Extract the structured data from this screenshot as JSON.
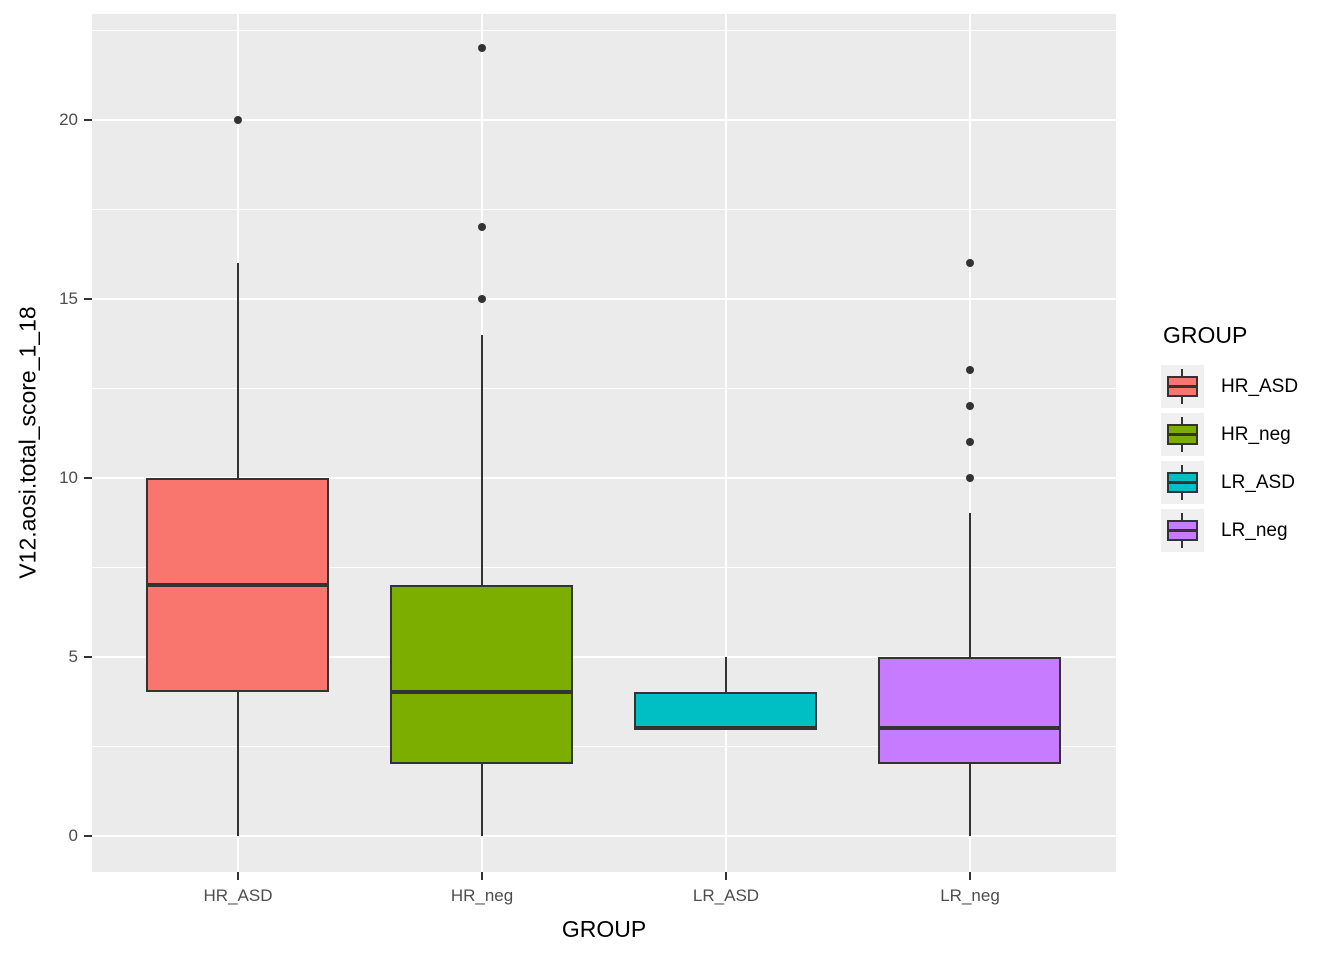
{
  "chart_data": {
    "type": "boxplot",
    "xlabel": "GROUP",
    "ylabel": "V12.aosi.total_score_1_18",
    "categories": [
      "HR_ASD",
      "HR_neg",
      "LR_ASD",
      "LR_neg"
    ],
    "y_ticks": [
      0,
      5,
      10,
      15,
      20
    ],
    "y_minor_gridlines": [
      2.5,
      7.5,
      12.5,
      17.5,
      22.5
    ],
    "ylim": [
      -1.02,
      22.96
    ],
    "grid": "on",
    "panel_background": "#EBEBEB",
    "gridline_color": "#ffffff",
    "stroke_color": "#333333",
    "series": [
      {
        "group": "HR_ASD",
        "color": "#F8766D",
        "whisker_low": 0,
        "q1": 4,
        "median": 7,
        "q3": 10,
        "whisker_high": 16,
        "outliers": [
          20
        ]
      },
      {
        "group": "HR_neg",
        "color": "#7CAE00",
        "whisker_low": 0,
        "q1": 2,
        "median": 4,
        "q3": 7,
        "whisker_high": 14,
        "outliers": [
          15,
          17,
          22
        ]
      },
      {
        "group": "LR_ASD",
        "color": "#00BFC4",
        "whisker_low": 3,
        "q1": 3,
        "median": 3,
        "q3": 4,
        "whisker_high": 5,
        "outliers": []
      },
      {
        "group": "LR_neg",
        "color": "#C77CFF",
        "whisker_low": 0,
        "q1": 2,
        "median": 3,
        "q3": 5,
        "whisker_high": 9,
        "outliers": [
          10,
          11,
          12,
          13,
          16
        ]
      }
    ],
    "legend": {
      "title": "GROUP",
      "position": "right",
      "entries": [
        {
          "label": "HR_ASD",
          "color": "#F8766D"
        },
        {
          "label": "HR_neg",
          "color": "#7CAE00"
        },
        {
          "label": "LR_ASD",
          "color": "#00BFC4"
        },
        {
          "label": "LR_neg",
          "color": "#C77CFF"
        }
      ]
    }
  }
}
